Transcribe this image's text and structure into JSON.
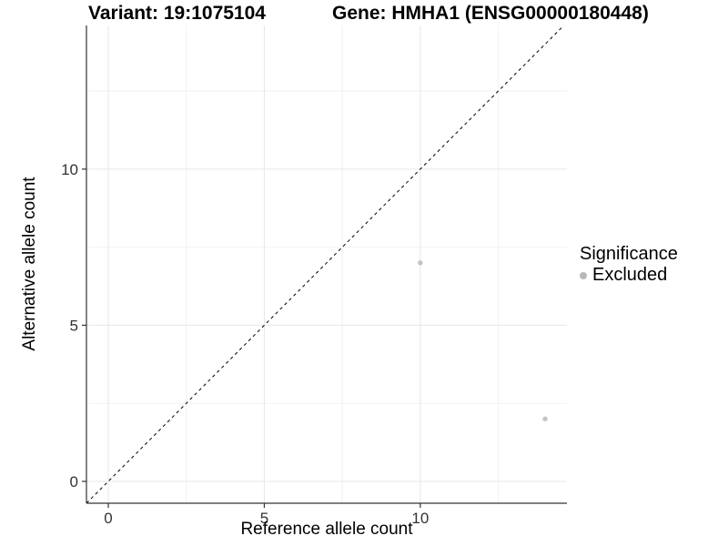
{
  "chart_data": {
    "type": "scatter",
    "title_left": "Variant: 19:1075104",
    "title_right": "Gene: HMHA1 (ENSG00000180448)",
    "xlabel": "Reference allele count",
    "ylabel": "Alternative allele count",
    "xlim": [
      -0.7,
      14.7
    ],
    "ylim": [
      -0.7,
      14.6
    ],
    "x_major_ticks": [
      0,
      5,
      10
    ],
    "y_major_ticks": [
      0,
      5,
      10
    ],
    "x_minor_ticks": [
      2.5,
      7.5,
      12.5
    ],
    "y_minor_ticks": [
      2.5,
      7.5,
      12.5
    ],
    "grid": true,
    "identity_line": {
      "slope": 1,
      "intercept": 0,
      "style": "dashed",
      "color": "#000000"
    },
    "series": [
      {
        "name": "Excluded",
        "color": "#c3c3c3",
        "points": [
          {
            "x": 10,
            "y": 7
          },
          {
            "x": 14,
            "y": 2
          }
        ]
      }
    ],
    "legend": {
      "title": "Significance",
      "position": "right",
      "items": [
        {
          "label": "Excluded",
          "color": "#b8b8b8"
        }
      ]
    },
    "colors": {
      "grid_major": "#e7e7e7",
      "grid_minor": "#f2f2f2",
      "axis_line": "#333333",
      "tick_text": "#333333",
      "background": "#ffffff"
    }
  }
}
